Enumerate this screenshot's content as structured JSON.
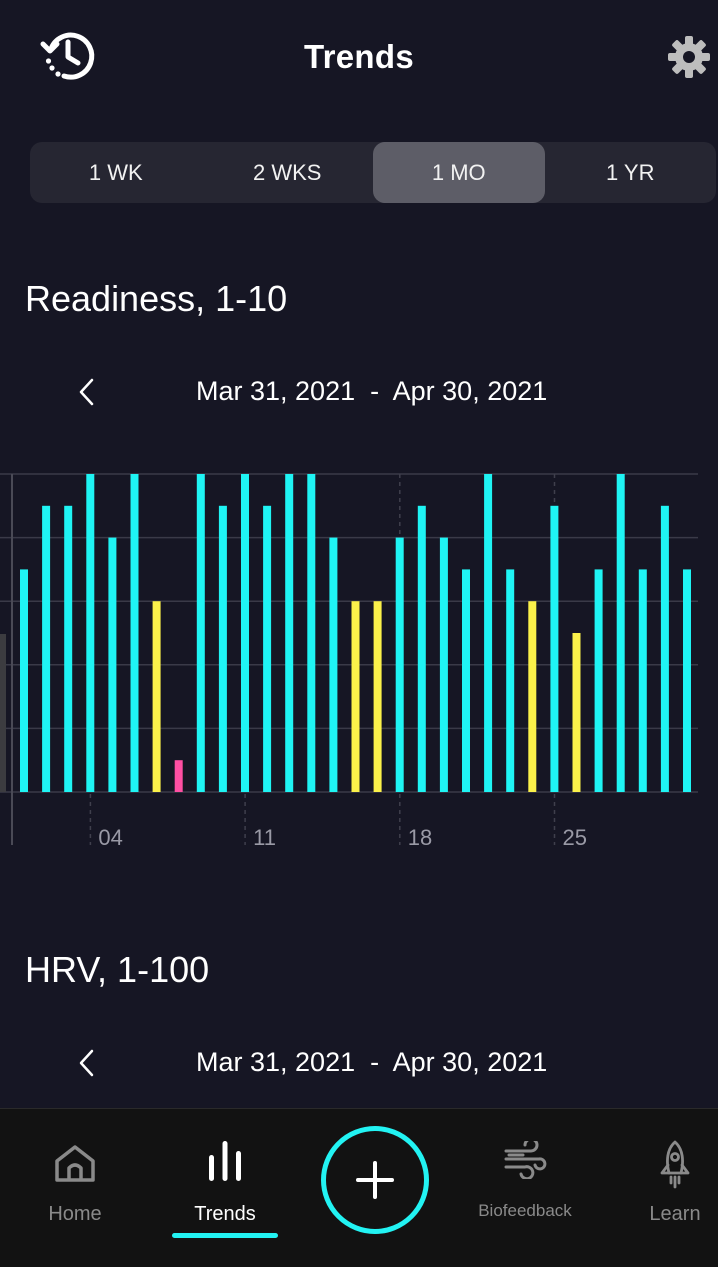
{
  "header": {
    "title": "Trends",
    "history_icon": "history-icon",
    "settings_icon": "gear-icon"
  },
  "range_tabs": [
    {
      "label": "1 WK",
      "active": false
    },
    {
      "label": "2 WKS",
      "active": false
    },
    {
      "label": "1 MO",
      "active": true
    },
    {
      "label": "1 YR",
      "active": false
    }
  ],
  "readiness": {
    "title": "Readiness, 1-10",
    "date_start": "Mar 31, 2021",
    "date_sep": "-",
    "date_end": "Apr 30, 2021"
  },
  "hrv": {
    "title": "HRV, 1-100",
    "date_start": "Mar 31, 2021",
    "date_sep": "-",
    "date_end": "Apr 30, 2021"
  },
  "colors": {
    "accent": "#22f3f3",
    "good": "#1ff4f4",
    "medium": "#fbf14a",
    "low": "#ff4fa3",
    "background": "#161624",
    "nav_background": "#121212"
  },
  "chart_data": {
    "type": "bar",
    "ylim": [
      0,
      10
    ],
    "x_tick_labels": [
      "04",
      "11",
      "18",
      "25"
    ],
    "x_tick_indices": [
      4,
      11,
      18,
      25
    ],
    "values": [
      7,
      9,
      9,
      10,
      8,
      10,
      6,
      1,
      10,
      9,
      10,
      9,
      10,
      10,
      8,
      6,
      6,
      8,
      9,
      8,
      7,
      10,
      7,
      6,
      9,
      5,
      7,
      10,
      7,
      9,
      7
    ],
    "value_colors": [
      "good",
      "good",
      "good",
      "good",
      "good",
      "good",
      "medium",
      "low",
      "good",
      "good",
      "good",
      "good",
      "good",
      "good",
      "good",
      "medium",
      "medium",
      "good",
      "good",
      "good",
      "good",
      "good",
      "good",
      "medium",
      "good",
      "medium",
      "good",
      "good",
      "good",
      "good",
      "good"
    ],
    "grid": true
  },
  "bottom_nav": {
    "items": [
      {
        "label": "Home",
        "icon": "home-icon",
        "active": false
      },
      {
        "label": "Trends",
        "icon": "bar-chart-icon",
        "active": true
      },
      {
        "label": "Biofeedback",
        "icon": "wind-icon",
        "active": false
      },
      {
        "label": "Learn",
        "icon": "rocket-icon",
        "active": false
      }
    ],
    "add_icon": "plus-icon"
  }
}
